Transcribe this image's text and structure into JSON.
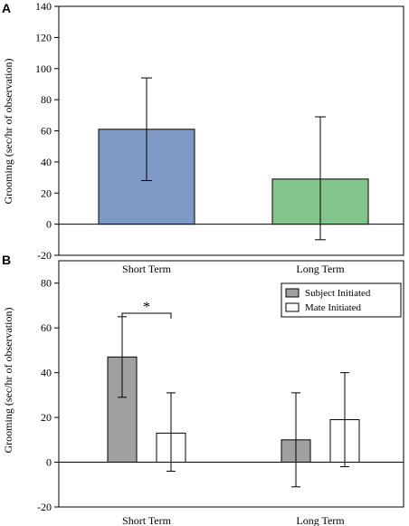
{
  "chart_data": [
    {
      "panel": "A",
      "type": "bar",
      "ylabel": "Grooming (sec/hr of observation)",
      "ylim": [
        -20,
        140
      ],
      "yticks": [
        -20,
        0,
        20,
        40,
        60,
        80,
        100,
        120,
        140
      ],
      "categories": [
        "Short Term",
        "Long Term"
      ],
      "bars": [
        {
          "category": "Short Term",
          "value": 61,
          "err_low": 28,
          "err_high": 94,
          "color": "#7f99c7"
        },
        {
          "category": "Long Term",
          "value": 29,
          "err_low": -10,
          "err_high": 69,
          "color": "#84c58d"
        }
      ]
    },
    {
      "panel": "B",
      "type": "bar",
      "ylabel": "Grooming (sec/hr of observation)",
      "ylim": [
        -20,
        90
      ],
      "yticks": [
        -20,
        0,
        20,
        40,
        60,
        80
      ],
      "categories": [
        "Short Term",
        "Long Term"
      ],
      "legend_position": "top-right",
      "series": [
        {
          "name": "Subject Initiated",
          "color": "#a0a0a0",
          "values": [
            47,
            10
          ],
          "err_low": [
            29,
            -11
          ],
          "err_high": [
            65,
            31
          ]
        },
        {
          "name": "Mate Initiated",
          "color": "#ffffff",
          "values": [
            13,
            19
          ],
          "err_low": [
            -4,
            -2
          ],
          "err_high": [
            31,
            40
          ]
        }
      ],
      "annotation": {
        "text": "*",
        "between": "Short Term"
      }
    }
  ]
}
